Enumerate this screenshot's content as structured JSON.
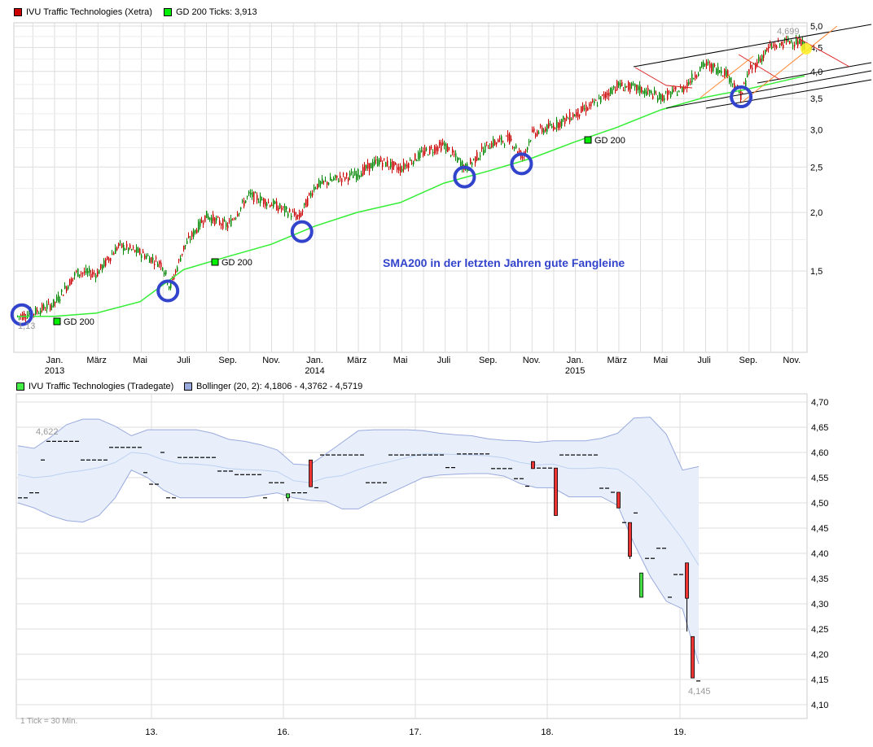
{
  "top_legend": {
    "series1": {
      "label": "IVU Traffic Technologies (Xetra)",
      "color": "#cc0000"
    },
    "series2": {
      "label": "GD 200 Ticks: 3,913",
      "color": "#00ee00"
    }
  },
  "bottom_legend": {
    "series1": {
      "label": "IVU Traffic Technologies (Tradegate)",
      "color": "#44ee44"
    },
    "series2": {
      "label": "Bollinger (20, 2): 4,1806 - 4,3762 - 4,5719",
      "color": "#99aadd"
    }
  },
  "chart_data": [
    {
      "type": "candlestick",
      "scale": "log",
      "grid": true,
      "ylim": [
        1.1,
        5.1
      ],
      "y_ticks": [
        "5,0",
        "4,5",
        "4,0",
        "3,5",
        "3,0",
        "2,5",
        "2,0",
        "1,5"
      ],
      "y_tick_values": [
        5.0,
        4.5,
        4.0,
        3.5,
        3.0,
        2.5,
        2.0,
        1.5
      ],
      "x_ticks": [
        {
          "label": "Jan.",
          "year": "2013",
          "date": "2013-01-01"
        },
        {
          "label": "März",
          "date": "2013-03-01"
        },
        {
          "label": "Mai",
          "date": "2013-05-01"
        },
        {
          "label": "Juli",
          "date": "2013-07-01"
        },
        {
          "label": "Sep.",
          "date": "2013-09-01"
        },
        {
          "label": "Nov.",
          "date": "2013-11-01"
        },
        {
          "label": "Jan.",
          "year": "2014",
          "date": "2014-01-01"
        },
        {
          "label": "März",
          "date": "2014-03-01"
        },
        {
          "label": "Mai",
          "date": "2014-05-01"
        },
        {
          "label": "Juli",
          "date": "2014-07-01"
        },
        {
          "label": "Sep.",
          "date": "2014-09-01"
        },
        {
          "label": "Nov.",
          "date": "2014-11-01"
        },
        {
          "label": "Jan.",
          "year": "2015",
          "date": "2015-01-01"
        },
        {
          "label": "März",
          "date": "2015-03-01"
        },
        {
          "label": "Mai",
          "date": "2015-05-01"
        },
        {
          "label": "Juli",
          "date": "2015-07-01"
        },
        {
          "label": "Sep.",
          "date": "2015-09-01"
        },
        {
          "label": "Nov.",
          "date": "2015-11-01"
        }
      ],
      "price": [
        [
          "2012-11-10",
          1.2
        ],
        [
          "2012-12-01",
          1.22
        ],
        [
          "2013-01-01",
          1.28
        ],
        [
          "2013-02-01",
          1.49
        ],
        [
          "2013-03-01",
          1.48
        ],
        [
          "2013-04-01",
          1.7
        ],
        [
          "2013-05-01",
          1.64
        ],
        [
          "2013-06-01",
          1.55
        ],
        [
          "2013-06-12",
          1.38
        ],
        [
          "2013-07-01",
          1.68
        ],
        [
          "2013-08-01",
          1.97
        ],
        [
          "2013-09-01",
          1.87
        ],
        [
          "2013-10-01",
          2.18
        ],
        [
          "2013-11-01",
          2.09
        ],
        [
          "2013-12-10",
          1.95
        ],
        [
          "2014-01-01",
          2.28
        ],
        [
          "2014-02-01",
          2.36
        ],
        [
          "2014-03-01",
          2.41
        ],
        [
          "2014-04-01",
          2.58
        ],
        [
          "2014-05-01",
          2.48
        ],
        [
          "2014-06-01",
          2.68
        ],
        [
          "2014-07-01",
          2.79
        ],
        [
          "2014-08-01",
          2.48
        ],
        [
          "2014-09-01",
          2.79
        ],
        [
          "2014-10-01",
          2.88
        ],
        [
          "2014-10-20",
          2.62
        ],
        [
          "2014-11-01",
          2.94
        ],
        [
          "2014-12-01",
          3.06
        ],
        [
          "2015-01-01",
          3.24
        ],
        [
          "2015-02-01",
          3.44
        ],
        [
          "2015-03-01",
          3.74
        ],
        [
          "2015-04-01",
          3.67
        ],
        [
          "2015-05-01",
          3.52
        ],
        [
          "2015-06-01",
          3.67
        ],
        [
          "2015-07-01",
          4.15
        ],
        [
          "2015-08-01",
          3.98
        ],
        [
          "2015-08-22",
          3.55
        ],
        [
          "2015-09-01",
          3.98
        ],
        [
          "2015-10-01",
          4.5
        ],
        [
          "2015-11-01",
          4.66
        ],
        [
          "2015-11-19",
          4.55
        ]
      ],
      "sma200": {
        "name": "GD 200",
        "color": "#33ee33",
        "points": [
          [
            "2012-11-10",
            1.2
          ],
          [
            "2013-01-01",
            1.2
          ],
          [
            "2013-03-01",
            1.22
          ],
          [
            "2013-05-01",
            1.29
          ],
          [
            "2013-07-01",
            1.51
          ],
          [
            "2013-09-01",
            1.61
          ],
          [
            "2013-11-01",
            1.71
          ],
          [
            "2014-01-01",
            1.87
          ],
          [
            "2014-03-01",
            2.0
          ],
          [
            "2014-05-01",
            2.1
          ],
          [
            "2014-07-01",
            2.31
          ],
          [
            "2014-09-01",
            2.45
          ],
          [
            "2014-11-01",
            2.61
          ],
          [
            "2015-01-01",
            2.83
          ],
          [
            "2015-03-01",
            3.04
          ],
          [
            "2015-05-01",
            3.31
          ],
          [
            "2015-07-01",
            3.52
          ],
          [
            "2015-09-01",
            3.67
          ],
          [
            "2015-11-19",
            3.913
          ]
        ]
      },
      "labels": {
        "high": "4,699",
        "low": "1,13",
        "gd200": "GD 200",
        "annotation": "SMA200 in der letzten Jahren gute Fangleine"
      },
      "annotation_color": "#3344cc",
      "circles": [
        [
          "2012-11-16",
          1.21
        ],
        [
          "2013-06-09",
          1.36
        ],
        [
          "2013-12-14",
          1.82
        ],
        [
          "2014-07-30",
          2.38
        ],
        [
          "2014-10-18",
          2.54
        ],
        [
          "2015-08-22",
          3.53
        ]
      ]
    },
    {
      "type": "candlestick",
      "ylim": [
        4.07,
        4.71
      ],
      "grid": true,
      "y_ticks": [
        "4,70",
        "4,65",
        "4,60",
        "4,55",
        "4,50",
        "4,45",
        "4,40",
        "4,35",
        "4,30",
        "4,25",
        "4,20",
        "4,15",
        "4,10"
      ],
      "y_tick_values": [
        4.7,
        4.65,
        4.6,
        4.55,
        4.5,
        4.45,
        4.4,
        4.35,
        4.3,
        4.25,
        4.2,
        4.15,
        4.1
      ],
      "x_ticks": [
        "13.",
        "16.",
        "17.",
        "18.",
        "19."
      ],
      "tick_note": "1 Tick = 30 Min.",
      "labels": {
        "high": "4,622",
        "low": "4,145"
      },
      "bars_note": "[open, close, repeat] flat runs or [open, close, 1, low] candles",
      "bars": [
        [
          4.51,
          4.51,
          2
        ],
        [
          4.52,
          4.52,
          2
        ],
        [
          4.585,
          4.585,
          1
        ],
        [
          4.622,
          4.622,
          6
        ],
        [
          4.585,
          4.585,
          5
        ],
        [
          4.61,
          4.61,
          6
        ],
        [
          4.56,
          4.56,
          1
        ],
        [
          4.537,
          4.537,
          2
        ],
        [
          4.6,
          4.6,
          1
        ],
        [
          4.51,
          4.51,
          2
        ],
        [
          4.59,
          4.59,
          7
        ],
        [
          4.563,
          4.563,
          3
        ],
        [
          4.556,
          4.556,
          5
        ],
        [
          4.51,
          4.51,
          1
        ],
        [
          4.54,
          4.54,
          3
        ],
        [
          4.51,
          4.518,
          1,
          4.503
        ],
        [
          4.52,
          4.52,
          3
        ],
        [
          4.585,
          4.532,
          1
        ],
        [
          4.53,
          4.53,
          1
        ],
        [
          4.595,
          4.595,
          8
        ],
        [
          4.54,
          4.54,
          4
        ],
        [
          4.595,
          4.595,
          10
        ],
        [
          4.57,
          4.57,
          2
        ],
        [
          4.597,
          4.597,
          6
        ],
        [
          4.568,
          4.568,
          4
        ],
        [
          4.548,
          4.548,
          2
        ],
        [
          4.533,
          4.533,
          1
        ],
        [
          4.582,
          4.568,
          1
        ],
        [
          4.569,
          4.569,
          3
        ],
        [
          4.569,
          4.475,
          1
        ],
        [
          4.595,
          4.595,
          7
        ],
        [
          4.529,
          4.529,
          2
        ],
        [
          4.521,
          4.521,
          1
        ],
        [
          4.521,
          4.49,
          1
        ],
        [
          4.461,
          4.461,
          1
        ],
        [
          4.461,
          4.394,
          1,
          4.389
        ],
        [
          4.48,
          4.48,
          1
        ],
        [
          4.313,
          4.361,
          1
        ],
        [
          4.39,
          4.39,
          2
        ],
        [
          4.41,
          4.41,
          2
        ],
        [
          4.313,
          4.313,
          1
        ],
        [
          4.358,
          4.358,
          2
        ],
        [
          4.381,
          4.311,
          1,
          4.245
        ],
        [
          4.235,
          4.153,
          1
        ],
        [
          4.147,
          4.147,
          1,
          4.145
        ]
      ],
      "bollinger": {
        "upper": [
          4.613,
          4.608,
          4.63,
          4.655,
          4.666,
          4.666,
          4.652,
          4.633,
          4.645,
          4.645,
          4.645,
          4.645,
          4.638,
          4.626,
          4.622,
          4.615,
          4.605,
          4.577,
          4.575,
          4.597,
          4.62,
          4.643,
          4.645,
          4.645,
          4.645,
          4.643,
          4.638,
          4.635,
          4.633,
          4.627,
          4.624,
          4.623,
          4.62,
          4.623,
          4.623,
          4.623,
          4.628,
          4.638,
          4.668,
          4.67,
          4.636,
          4.565,
          4.5719
        ],
        "middle": [
          4.556,
          4.55,
          4.553,
          4.56,
          4.564,
          4.57,
          4.58,
          4.6,
          4.597,
          4.585,
          4.578,
          4.577,
          4.574,
          4.568,
          4.566,
          4.565,
          4.562,
          4.544,
          4.54,
          4.55,
          4.554,
          4.566,
          4.575,
          4.582,
          4.59,
          4.597,
          4.597,
          4.596,
          4.595,
          4.593,
          4.589,
          4.58,
          4.575,
          4.577,
          4.568,
          4.568,
          4.57,
          4.567,
          4.545,
          4.512,
          4.47,
          4.428,
          4.3762
        ],
        "lower": [
          4.5,
          4.49,
          4.475,
          4.465,
          4.462,
          4.475,
          4.51,
          4.565,
          4.55,
          4.525,
          4.51,
          4.51,
          4.51,
          4.51,
          4.51,
          4.515,
          4.52,
          4.51,
          4.505,
          4.503,
          4.488,
          4.488,
          4.505,
          4.52,
          4.535,
          4.55,
          4.555,
          4.557,
          4.558,
          4.558,
          4.553,
          4.538,
          4.53,
          4.53,
          4.512,
          4.512,
          4.512,
          4.495,
          4.42,
          4.355,
          4.305,
          4.29,
          4.1806
        ]
      }
    }
  ]
}
